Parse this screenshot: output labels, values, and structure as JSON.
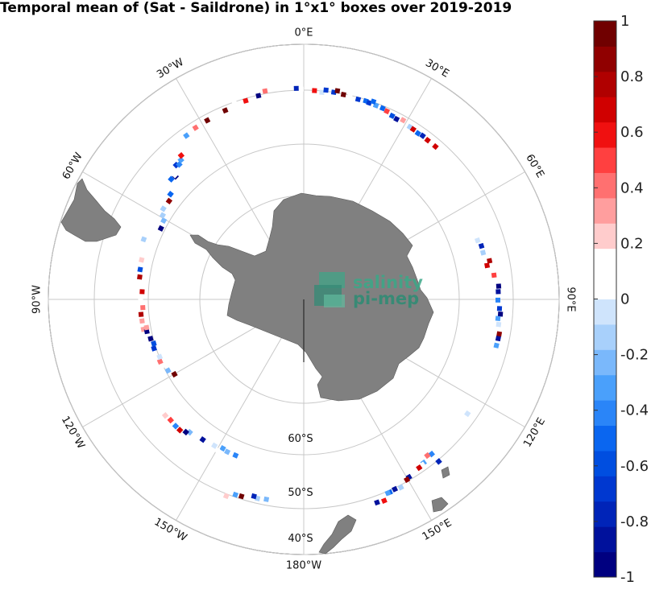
{
  "title": "Temporal mean of (Sat - Saildrone) in 1°x1° boxes over 2019-2019",
  "lon_labels": [
    {
      "id": "0e",
      "text": "0°E",
      "angle": 0
    },
    {
      "id": "30e",
      "text": "30°E",
      "angle": 30
    },
    {
      "id": "60e",
      "text": "60°E",
      "angle": 60
    },
    {
      "id": "90e",
      "text": "90°E",
      "angle": 90
    },
    {
      "id": "120e",
      "text": "120°E",
      "angle": 120
    },
    {
      "id": "150e",
      "text": "150°E",
      "angle": 150
    },
    {
      "id": "180w",
      "text": "180°W",
      "angle": 180
    },
    {
      "id": "150w",
      "text": "150°W",
      "angle": 210
    },
    {
      "id": "120w",
      "text": "120°W",
      "angle": 240
    },
    {
      "id": "90w",
      "text": "90°W",
      "angle": 270
    },
    {
      "id": "60w",
      "text": "60°W",
      "angle": 300
    },
    {
      "id": "30w",
      "text": "30°W",
      "angle": 330
    }
  ],
  "lat_labels": [
    {
      "id": "60s",
      "text": "60°S",
      "lat": -60
    },
    {
      "id": "50s",
      "text": "50°S",
      "lat": -50
    },
    {
      "id": "40s",
      "text": "40°S",
      "lat": -40
    }
  ],
  "colorbar": {
    "min": -1,
    "max": 1,
    "ticks": [
      "1",
      "0.8",
      "0.6",
      "0.4",
      "0.2",
      "0",
      "-0.2",
      "-0.4",
      "-0.6",
      "-0.8",
      "-1"
    ],
    "colors": [
      "#000080",
      "#00119c",
      "#0024b8",
      "#0038d0",
      "#004ee0",
      "#0a66f0",
      "#2a85f8",
      "#4aa0fb",
      "#7ab8fb",
      "#a8d0fb",
      "#cfe4fc",
      "#ffffff",
      "#ffffff",
      "#ffcccc",
      "#ff9e9e",
      "#ff7070",
      "#ff4040",
      "#f01010",
      "#d00000",
      "#b00000",
      "#900000",
      "#700000"
    ]
  },
  "logo": {
    "line1": "salinity",
    "line2": "pi-mep"
  },
  "colors": {
    "land": "#808080",
    "grid": "#c8c8c8",
    "ocean": "#ffffff"
  }
}
